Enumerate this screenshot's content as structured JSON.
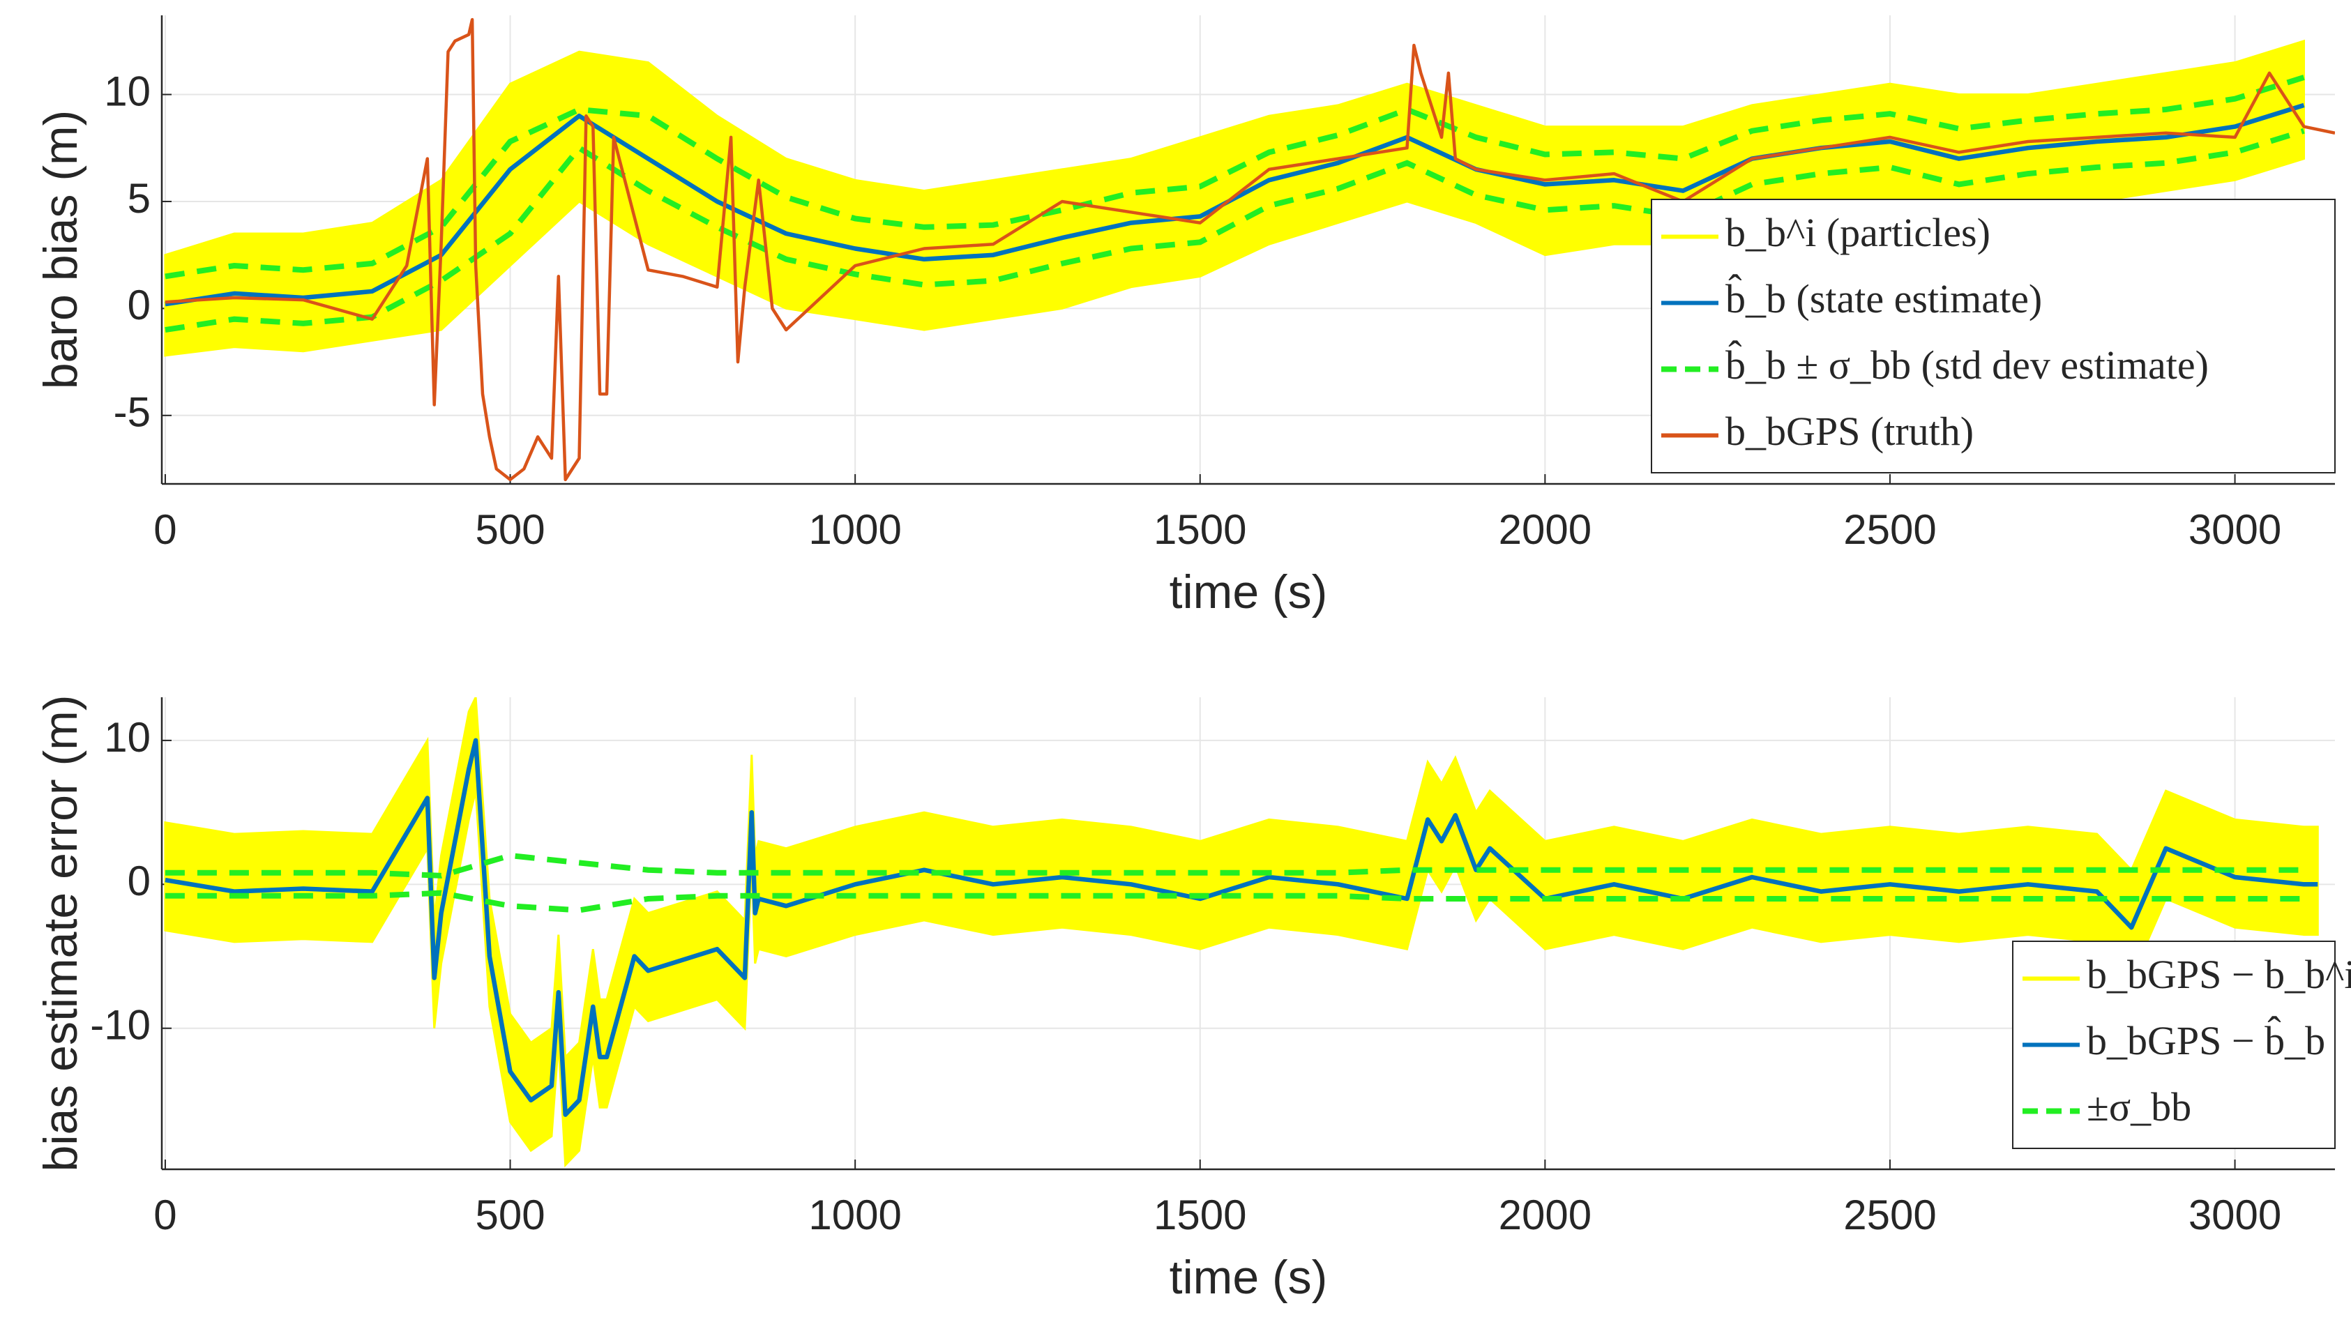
{
  "chart_data": [
    {
      "type": "line",
      "xlabel": "time (s)",
      "ylabel": "baro bias (m)",
      "xlim": [
        -5,
        3145
      ],
      "ylim": [
        -8.2,
        13.7
      ],
      "xticks": [
        0,
        500,
        1000,
        1500,
        2000,
        2500,
        3000
      ],
      "yticks": [
        -5,
        0,
        5,
        10
      ],
      "grid": true,
      "legend": "northeast",
      "x": [
        0,
        100,
        200,
        300,
        400,
        500,
        600,
        700,
        800,
        900,
        1000,
        1100,
        1200,
        1300,
        1400,
        1500,
        1600,
        1700,
        1800,
        1900,
        2000,
        2100,
        2200,
        2300,
        2400,
        2500,
        2600,
        2700,
        2800,
        2900,
        3000,
        3100
      ],
      "series": [
        {
          "name": "b_b^i (particles)",
          "color": "#ffff00",
          "style": "band",
          "upper": [
            2.5,
            3.5,
            3.5,
            4,
            6,
            10.5,
            12,
            11.5,
            9,
            7,
            6,
            5.5,
            6,
            6.5,
            7,
            8,
            9,
            9.5,
            10.5,
            9.5,
            8.5,
            8.5,
            8.5,
            9.5,
            10,
            10.5,
            10,
            10,
            10.5,
            11,
            11.5,
            12.5
          ],
          "lower": [
            -2.2,
            -1.8,
            -2,
            -1.5,
            -1,
            2,
            5,
            3,
            1.5,
            0,
            -0.5,
            -1,
            -0.5,
            0,
            1,
            1.5,
            3,
            4,
            5,
            4,
            2.5,
            3,
            3,
            4,
            5,
            5,
            4.5,
            5,
            5,
            5.5,
            6,
            7
          ]
        },
        {
          "name": "b̂_b (state estimate)",
          "color": "#0072bd",
          "style": "line",
          "values": [
            0.2,
            0.7,
            0.5,
            0.8,
            2.5,
            6.5,
            9,
            7,
            5,
            3.5,
            2.8,
            2.3,
            2.5,
            3.3,
            4,
            4.3,
            6,
            6.8,
            8,
            6.5,
            5.8,
            6,
            5.5,
            7,
            7.5,
            7.8,
            7,
            7.5,
            7.8,
            8,
            8.5,
            9.5
          ]
        },
        {
          "name": "b̂_b ± σ_bb (std dev estimate)",
          "color": "#22ee22",
          "style": "dashed-bounds",
          "upper": [
            1.5,
            2,
            1.8,
            2.1,
            3.8,
            7.8,
            9.3,
            9,
            7,
            5.2,
            4.2,
            3.8,
            3.9,
            4.6,
            5.4,
            5.7,
            7.3,
            8.1,
            9.3,
            8,
            7.2,
            7.3,
            7,
            8.3,
            8.8,
            9.1,
            8.4,
            8.8,
            9.1,
            9.3,
            9.8,
            10.8
          ],
          "lower": [
            -1,
            -0.5,
            -0.7,
            -0.4,
            1.3,
            3.5,
            7.5,
            5.5,
            3.8,
            2.3,
            1.6,
            1.1,
            1.3,
            2.1,
            2.8,
            3.1,
            4.8,
            5.6,
            6.8,
            5.3,
            4.6,
            4.8,
            4.3,
            5.8,
            6.3,
            6.6,
            5.8,
            6.3,
            6.6,
            6.8,
            7.3,
            8.3
          ]
        },
        {
          "name": "b_bGPS (truth)",
          "color": "#d95319",
          "style": "thin-line",
          "x": [
            0,
            100,
            200,
            300,
            350,
            380,
            390,
            400,
            410,
            420,
            440,
            445,
            450,
            460,
            470,
            480,
            500,
            520,
            540,
            560,
            570,
            580,
            590,
            600,
            610,
            620,
            630,
            640,
            650,
            700,
            750,
            800,
            820,
            830,
            840,
            860,
            880,
            900,
            1000,
            1100,
            1200,
            1300,
            1400,
            1500,
            1600,
            1700,
            1800,
            1810,
            1820,
            1850,
            1860,
            1870,
            1900,
            2000,
            2100,
            2200,
            2300,
            2400,
            2500,
            2600,
            2700,
            2800,
            2900,
            3000,
            3050,
            3100,
            3145
          ],
          "values": [
            0.3,
            0.5,
            0.4,
            -0.5,
            2,
            7,
            -4.5,
            3,
            12,
            12.5,
            12.8,
            13.5,
            2,
            -4,
            -6,
            -7.5,
            -8,
            -7.5,
            -6,
            -7,
            1.5,
            -8,
            -7.5,
            -7,
            9,
            8.5,
            -4,
            -4,
            8,
            1.8,
            1.5,
            1,
            8,
            -2.5,
            1,
            6,
            0,
            -1,
            2,
            2.8,
            3,
            5,
            4.5,
            4,
            6.5,
            7,
            7.5,
            12.3,
            11,
            8,
            11,
            7,
            6.5,
            6,
            6.3,
            5,
            7,
            7.5,
            8,
            7.3,
            7.8,
            8,
            8.2,
            8,
            11,
            8.5,
            8.2
          ]
        }
      ]
    },
    {
      "type": "line",
      "xlabel": "time (s)",
      "ylabel": "bias estimate error (m)",
      "xlim": [
        -5,
        3145
      ],
      "ylim": [
        -19.8,
        13
      ],
      "xticks": [
        0,
        500,
        1000,
        1500,
        2000,
        2500,
        3000
      ],
      "yticks": [
        -10,
        0,
        10
      ],
      "grid": true,
      "legend": "southeast",
      "x": [
        0,
        100,
        200,
        300,
        400,
        500,
        600,
        700,
        800,
        900,
        1000,
        1100,
        1200,
        1300,
        1400,
        1500,
        1600,
        1700,
        1800,
        1900,
        2000,
        2100,
        2200,
        2300,
        2400,
        2500,
        2600,
        2700,
        2800,
        2900,
        3000,
        3100
      ],
      "series": [
        {
          "name": "b_bGPS − b_b^i",
          "color": "#ffff00",
          "style": "band",
          "x": [
            0,
            100,
            200,
            300,
            380,
            390,
            400,
            440,
            450,
            470,
            500,
            530,
            560,
            570,
            580,
            600,
            620,
            630,
            640,
            680,
            700,
            800,
            840,
            850,
            855,
            860,
            900,
            1000,
            1100,
            1200,
            1300,
            1400,
            1500,
            1600,
            1700,
            1800,
            1830,
            1850,
            1870,
            1900,
            1920,
            2000,
            2100,
            2200,
            2300,
            2400,
            2500,
            2600,
            2700,
            2800,
            2850,
            2900,
            3000,
            3100,
            3120
          ],
          "upper": [
            4.3,
            3.5,
            3.7,
            3.5,
            10,
            -2.5,
            2,
            12,
            13,
            -1,
            -9,
            -11,
            -10,
            -3.5,
            -12,
            -11,
            -4.5,
            -8,
            -8,
            -1,
            -2,
            -0.5,
            -2.5,
            9,
            2,
            3,
            2.5,
            4,
            5,
            4,
            4.5,
            4,
            3,
            4.5,
            4,
            3,
            8.5,
            7,
            8.8,
            5,
            6.5,
            3,
            4,
            3,
            4.5,
            3.5,
            4,
            3.5,
            4,
            3.5,
            1,
            6.5,
            4.5,
            4,
            4
          ],
          "lower": [
            -3.2,
            -4,
            -3.8,
            -4,
            2.5,
            -10,
            -5.5,
            4.5,
            6.5,
            -8.5,
            -16.5,
            -18.5,
            -17.5,
            -11,
            -19.5,
            -18.5,
            -12,
            -15.5,
            -15.5,
            -8.5,
            -9.5,
            -8,
            -10,
            1.5,
            -5.5,
            -4.5,
            -5,
            -3.5,
            -2.5,
            -3.5,
            -3,
            -3.5,
            -4.5,
            -3,
            -3.5,
            -4.5,
            1,
            -0.5,
            1.3,
            -2.5,
            -1,
            -4.5,
            -3.5,
            -4.5,
            -3,
            -4,
            -3.5,
            -4,
            -3.5,
            -4,
            -6.5,
            -1,
            -3,
            -3.5,
            -3.5
          ]
        },
        {
          "name": "b_bGPS − b̂_b",
          "color": "#0072bd",
          "style": "line",
          "x": [
            0,
            100,
            200,
            300,
            380,
            390,
            400,
            440,
            450,
            470,
            500,
            530,
            560,
            570,
            580,
            600,
            620,
            630,
            640,
            680,
            700,
            800,
            840,
            850,
            855,
            860,
            900,
            1000,
            1100,
            1200,
            1300,
            1400,
            1500,
            1600,
            1700,
            1800,
            1830,
            1850,
            1870,
            1900,
            1920,
            2000,
            2100,
            2200,
            2300,
            2400,
            2500,
            2600,
            2700,
            2800,
            2850,
            2900,
            3000,
            3100,
            3120
          ],
          "values": [
            0.3,
            -0.5,
            -0.3,
            -0.5,
            6,
            -6.5,
            -2,
            8,
            10,
            -5,
            -13,
            -15,
            -14,
            -7.5,
            -16,
            -15,
            -8.5,
            -12,
            -12,
            -5,
            -6,
            -4.5,
            -6.5,
            5,
            -2,
            -1,
            -1.5,
            0,
            1,
            0,
            0.5,
            0,
            -1,
            0.5,
            0,
            -1,
            4.5,
            3,
            4.8,
            1,
            2.5,
            -1,
            0,
            -1,
            0.5,
            -0.5,
            0,
            -0.5,
            0,
            -0.5,
            -3,
            2.5,
            0.5,
            0,
            0
          ]
        },
        {
          "name": "±σ_bb",
          "color": "#22ee22",
          "style": "dashed-bounds",
          "upper": [
            0.8,
            0.8,
            0.8,
            0.8,
            0.6,
            2,
            1.5,
            1,
            0.8,
            0.8,
            0.8,
            0.8,
            0.8,
            0.8,
            0.8,
            0.8,
            0.8,
            0.8,
            1,
            1,
            1,
            1,
            1,
            1,
            1,
            1,
            1,
            1,
            1,
            1,
            1,
            1
          ],
          "lower": [
            -0.8,
            -0.8,
            -0.8,
            -0.8,
            -0.6,
            -1.5,
            -1.8,
            -1,
            -0.8,
            -0.8,
            -0.8,
            -0.8,
            -0.8,
            -0.8,
            -0.8,
            -0.8,
            -0.8,
            -0.8,
            -1,
            -1,
            -1,
            -1,
            -1,
            -1,
            -1,
            -1,
            -1,
            -1,
            -1,
            -1,
            -1,
            -1
          ]
        }
      ]
    }
  ]
}
